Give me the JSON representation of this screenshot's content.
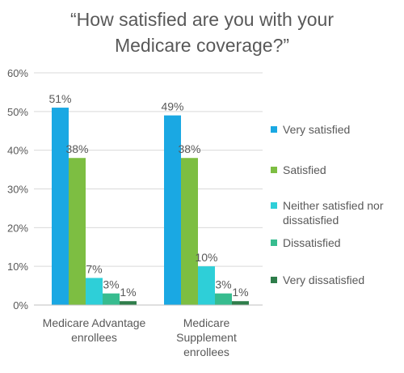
{
  "chart_data": {
    "type": "bar",
    "title_lines": [
      "“How satisfied are you with your",
      "Medicare coverage?”"
    ],
    "categories": [
      [
        "Medicare Advantage",
        "enrollees"
      ],
      [
        "Medicare",
        "Supplement",
        "enrollees"
      ]
    ],
    "y_ticks": [
      "0%",
      "10%",
      "20%",
      "30%",
      "40%",
      "50%",
      "60%"
    ],
    "ylim": [
      0,
      60
    ],
    "grid": true,
    "legend_position": "right",
    "series": [
      {
        "name": "Very satisfied",
        "name_lines": [
          "Very satisfied"
        ],
        "color": "#1AA8E3",
        "values": [
          51,
          49
        ],
        "labels": [
          "51%",
          "49%"
        ]
      },
      {
        "name": "Satisfied",
        "name_lines": [
          "Satisfied"
        ],
        "color": "#7DBE42",
        "values": [
          38,
          38
        ],
        "labels": [
          "38%",
          "38%"
        ]
      },
      {
        "name": "Neither satisfied nor dissatisfied",
        "name_lines": [
          "Neither satisfied nor",
          "dissatisfied"
        ],
        "color": "#2ECFD8",
        "values": [
          7,
          10
        ],
        "labels": [
          "7%",
          "10%"
        ]
      },
      {
        "name": "Dissatisfied",
        "name_lines": [
          "Dissatisfied"
        ],
        "color": "#37BC8F",
        "values": [
          3,
          3
        ],
        "labels": [
          "3%",
          "3%"
        ]
      },
      {
        "name": "Very dissatisfied",
        "name_lines": [
          "Very dissatisfied"
        ],
        "color": "#2E7D4A",
        "values": [
          1,
          1
        ],
        "labels": [
          "1%",
          "1%"
        ]
      }
    ]
  }
}
